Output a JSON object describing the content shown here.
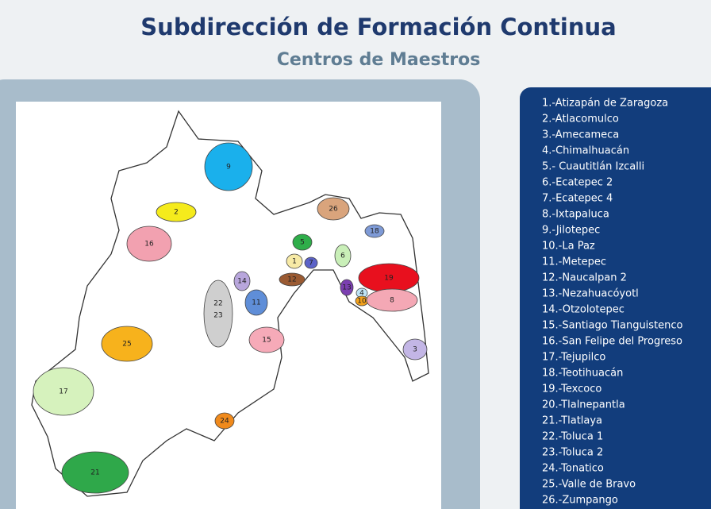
{
  "header": {
    "title": "Subdirección de Formación Continua",
    "subtitle": "Centros de Maestros"
  },
  "list": [
    "1.-Atizapán de Zaragoza",
    "2.-Atlacomulco",
    "3.-Amecameca",
    "4.-Chimalhuacán",
    "5.- Cuautitlán Izcalli",
    "6.-Ecatepec 2",
    "7.-Ecatepec 4",
    "8.-Ixtapaluca",
    "9.-Jilotepec",
    "10.-La Paz",
    "11.-Metepec",
    "12.-Naucalpan 2",
    "13.-Nezahuacóyotl",
    "14.-Otzolotepec",
    "15.-Santiago Tianguistenco",
    "16.-San Felipe del Progreso",
    "17.-Tejupilco",
    "18.-Teotihuacán",
    "19.-Texcoco",
    "20.-Tlalnepantla",
    "21.-Tlatlaya",
    "22.-Toluca 1",
    "23.-Toluca 2",
    "24.-Tonatico",
    "25.-Valle de Bravo",
    "26.-Zumpango"
  ],
  "map": {
    "regions": [
      {
        "label": "9",
        "color": "#1ab0ec"
      },
      {
        "label": "2",
        "color": "#f5eb1c"
      },
      {
        "label": "26",
        "color": "#d9a47c"
      },
      {
        "label": "16",
        "color": "#f2a1b0"
      },
      {
        "label": "5",
        "color": "#2fae4a"
      },
      {
        "label": "1",
        "color": "#f7eaa6"
      },
      {
        "label": "7",
        "color": "#5b62c8"
      },
      {
        "label": "6",
        "color": "#c9efb8"
      },
      {
        "label": "18",
        "color": "#7e9ad6"
      },
      {
        "label": "19",
        "color": "#e8101e"
      },
      {
        "label": "12",
        "color": "#9a5a32"
      },
      {
        "label": "13",
        "color": "#7b3fb0"
      },
      {
        "label": "4",
        "color": "#bfe4f5"
      },
      {
        "label": "10",
        "color": "#f4a21c"
      },
      {
        "label": "8",
        "color": "#f4a8b5"
      },
      {
        "label": "14",
        "color": "#b8a6dc"
      },
      {
        "label": "11",
        "color": "#5f8ed8"
      },
      {
        "label": "22",
        "color": "#cfcfcf"
      },
      {
        "label": "23",
        "color": "#cfcfcf"
      },
      {
        "label": "15",
        "color": "#f6aab8"
      },
      {
        "label": "3",
        "color": "#c3b6e6"
      },
      {
        "label": "25",
        "color": "#f7b21c"
      },
      {
        "label": "17",
        "color": "#d6f2bd"
      },
      {
        "label": "24",
        "color": "#f08a1c"
      },
      {
        "label": "21",
        "color": "#2fa84a"
      }
    ]
  }
}
